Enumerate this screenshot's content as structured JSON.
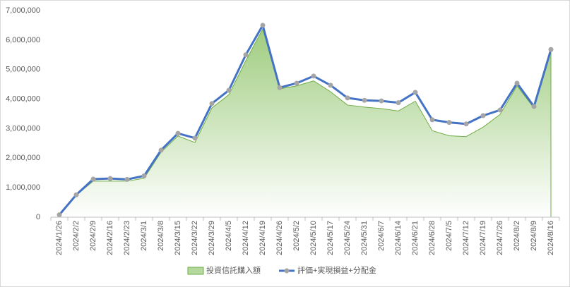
{
  "chart_data": {
    "type": "area-line",
    "categories": [
      "2024/1/26",
      "2024/2/2",
      "2024/2/9",
      "2024/2/16",
      "2024/2/23",
      "2024/3/1",
      "2024/3/8",
      "2024/3/15",
      "2024/3/22",
      "2024/3/29",
      "2024/4/5",
      "2024/4/12",
      "2024/4/19",
      "2024/4/26",
      "2024/5/2",
      "2024/5/10",
      "2024/5/17",
      "2024/5/24",
      "2024/5/31",
      "2024/6/7",
      "2024/6/14",
      "2024/6/21",
      "2024/6/28",
      "2024/7/5",
      "2024/7/12",
      "2024/7/19",
      "2024/7/26",
      "2024/8/2",
      "2024/8/9",
      "2024/8/16"
    ],
    "series": [
      {
        "name": "投資信託購入額",
        "kind": "area",
        "color": "#70ad47",
        "values": [
          80000,
          750000,
          1220000,
          1220000,
          1220000,
          1320000,
          2200000,
          2750000,
          2530000,
          3700000,
          4150000,
          5300000,
          6380000,
          4350000,
          4450000,
          4620000,
          4250000,
          3800000,
          3730000,
          3680000,
          3600000,
          3930000,
          2930000,
          2760000,
          2730000,
          3050000,
          3480000,
          4450000,
          3700000,
          5650000
        ]
      },
      {
        "name": "評価+実現損益+分配金",
        "kind": "line",
        "color": "#4472c4",
        "marker_color": "#a5a5a5",
        "values": [
          80000,
          760000,
          1290000,
          1310000,
          1280000,
          1400000,
          2270000,
          2840000,
          2680000,
          3850000,
          4300000,
          5500000,
          6500000,
          4390000,
          4540000,
          4780000,
          4470000,
          4040000,
          3960000,
          3940000,
          3880000,
          4230000,
          3300000,
          3210000,
          3160000,
          3440000,
          3630000,
          4540000,
          3750000,
          5680000
        ]
      }
    ],
    "ylim": [
      0,
      7000000
    ],
    "yticks": [
      0,
      {
        "value": 1000000,
        "label": "1,000,000"
      },
      {
        "value": 2000000,
        "label": "2,000,000"
      },
      {
        "value": 3000000,
        "label": "3,000,000"
      },
      {
        "value": 4000000,
        "label": "4,000,000"
      },
      {
        "value": 5000000,
        "label": "5,000,000"
      },
      {
        "value": 6000000,
        "label": "6,000,000"
      },
      {
        "value": 7000000,
        "label": "7,000,000"
      }
    ],
    "grid": false
  }
}
